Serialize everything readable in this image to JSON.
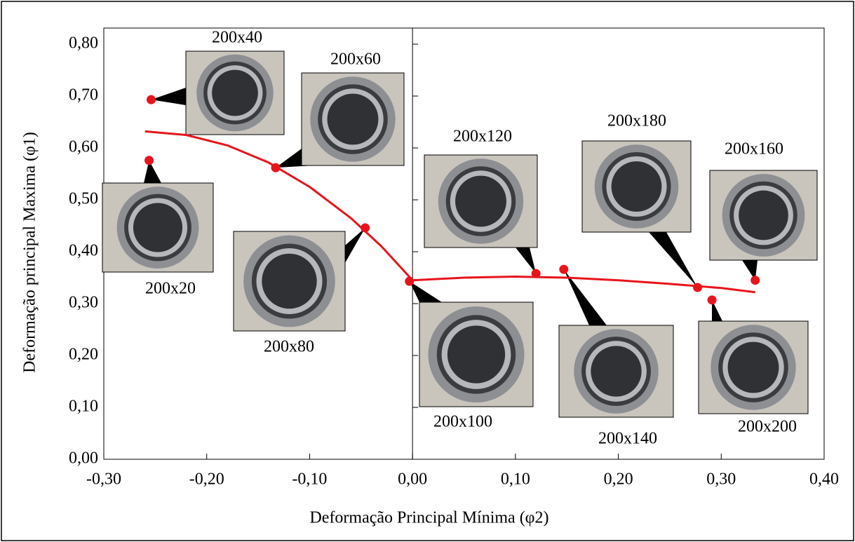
{
  "chart_data": {
    "type": "scatter",
    "x_label": "Deformação Principal Mínima (φ2)",
    "y_label": "Deformação principal Maxima (φ1)",
    "xlim": [
      -0.3,
      0.4
    ],
    "ylim": [
      0,
      0.8
    ],
    "xticks": [
      {
        "value": -0.3,
        "label": "-0,30"
      },
      {
        "value": -0.2,
        "label": "-0,20"
      },
      {
        "value": -0.1,
        "label": "-0,10"
      },
      {
        "value": 0,
        "label": "0,00"
      },
      {
        "value": 0.1,
        "label": "0,10"
      },
      {
        "value": 0.2,
        "label": "0,20"
      },
      {
        "value": 0.3,
        "label": "0,30"
      },
      {
        "value": 0.4,
        "label": "0,40"
      }
    ],
    "yticks": [
      {
        "value": 0,
        "label": "0,00"
      },
      {
        "value": 0.1,
        "label": "0,10"
      },
      {
        "value": 0.2,
        "label": "0,20"
      },
      {
        "value": 0.3,
        "label": "0,30"
      },
      {
        "value": 0.4,
        "label": "0,40"
      },
      {
        "value": 0.5,
        "label": "0,50"
      },
      {
        "value": 0.6,
        "label": "0,60"
      },
      {
        "value": 0.7,
        "label": "0,70"
      },
      {
        "value": 0.8,
        "label": "0,80"
      }
    ],
    "points": {
      "color": "#e8141c",
      "x": [
        -0.254,
        -0.256,
        -0.133,
        -0.046,
        -0.003,
        0.12,
        0.147,
        0.277,
        0.291,
        0.333
      ],
      "values": [
        0.693,
        0.576,
        0.562,
        0.446,
        0.343,
        0.358,
        0.366,
        0.331,
        0.307,
        0.345
      ]
    },
    "curves": [
      {
        "color": "#e8141c",
        "x": [
          -0.26,
          -0.22,
          -0.18,
          -0.14,
          -0.1,
          -0.06,
          -0.03,
          0
        ],
        "values": [
          0.632,
          0.625,
          0.605,
          0.572,
          0.525,
          0.465,
          0.41,
          0.345
        ]
      },
      {
        "color": "#e8141c",
        "x": [
          0,
          0.05,
          0.1,
          0.15,
          0.2,
          0.25,
          0.3,
          0.333
        ],
        "values": [
          0.345,
          0.35,
          0.352,
          0.35,
          0.345,
          0.338,
          0.33,
          0.322
        ]
      }
    ],
    "annotations": [
      "200x40",
      "200x60",
      "200x20",
      "200x80",
      "200x100",
      "200x120",
      "200x140",
      "200x180",
      "200x160",
      "200x200"
    ]
  }
}
